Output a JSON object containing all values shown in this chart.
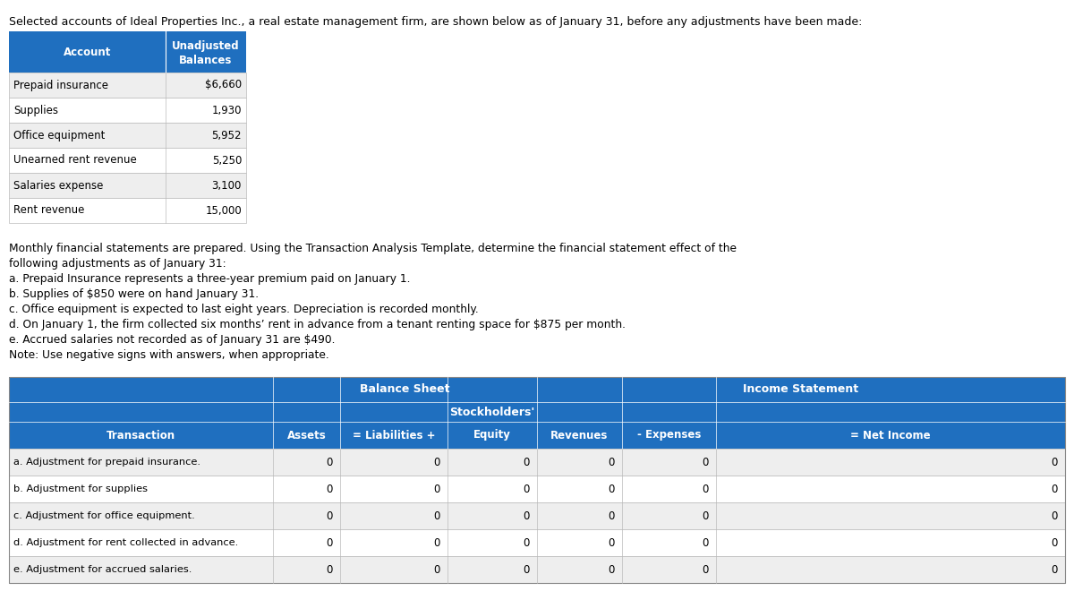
{
  "intro_text": "Selected accounts of Ideal Properties Inc., a real estate management firm, are shown below as of January 31, before any adjustments have been made:",
  "top_table_col1_header": "Account",
  "top_table_header1": "Unadjusted",
  "top_table_header2": "Balances",
  "top_table_rows": [
    [
      "Prepaid insurance",
      "$6,660"
    ],
    [
      "Supplies",
      "1,930"
    ],
    [
      "Office equipment",
      "5,952"
    ],
    [
      "Unearned rent revenue",
      "5,250"
    ],
    [
      "Salaries expense",
      "3,100"
    ],
    [
      "Rent revenue",
      "15,000"
    ]
  ],
  "middle_text_lines": [
    "Monthly financial statements are prepared. Using the Transaction Analysis Template, determine the financial statement effect of the",
    "following adjustments as of January 31:",
    "a. Prepaid Insurance represents a three-year premium paid on January 1.",
    "b. Supplies of $850 were on hand January 31.",
    "c. Office equipment is expected to last eight years. Depreciation is recorded monthly.",
    "d. On January 1, the firm collected six months’ rent in advance from a tenant renting space for $875 per month.",
    "e. Accrued salaries not recorded as of January 31 are $490.",
    "Note: Use negative signs with answers, when appropriate."
  ],
  "header_bg": "#1F6FBF",
  "header_fg": "#FFFFFF",
  "row_bg_even": "#EEEEEE",
  "row_bg_odd": "#FFFFFF",
  "grid_color": "#BBBBBB",
  "bottom_col_labels": [
    "Transaction",
    "Assets",
    "= Liabilities +",
    "Equity",
    "Revenues",
    "- Expenses",
    "= Net Income"
  ],
  "bottom_rows": [
    [
      "a. Adjustment for prepaid insurance.",
      "0",
      "0",
      "0",
      "0",
      "0",
      "0"
    ],
    [
      "b. Adjustment for supplies",
      "0",
      "0",
      "0",
      "0",
      "0",
      "0"
    ],
    [
      "c. Adjustment for office equipment.",
      "0",
      "0",
      "0",
      "0",
      "0",
      "0"
    ],
    [
      "d. Adjustment for rent collected in advance.",
      "0",
      "0",
      "0",
      "0",
      "0",
      "0"
    ],
    [
      "e. Adjustment for accrued salaries.",
      "0",
      "0",
      "0",
      "0",
      "0",
      "0"
    ]
  ],
  "fig_w": 12.0,
  "fig_h": 6.7,
  "dpi": 100
}
